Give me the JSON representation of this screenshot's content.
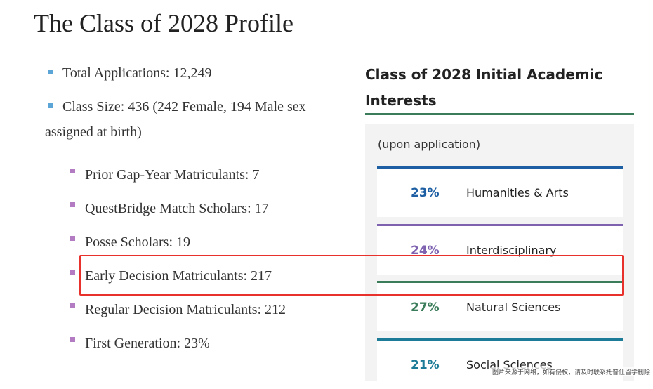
{
  "title": "The Class of 2028 Profile",
  "stats": {
    "total_applications": "Total Applications: 12,249",
    "class_size": "Class Size: 436 (242 Female, 194 Male sex assigned at birth)"
  },
  "sub_stats": [
    "Prior Gap-Year Matriculants: 7",
    "QuestBridge Match Scholars: 17",
    "Posse Scholars: 19",
    "Early Decision Matriculants: 217",
    "Regular Decision Matriculants: 212",
    "First Generation: 23%"
  ],
  "sidebar": {
    "title": "Class of 2028 Initial Academic Interests",
    "note": "(upon application)",
    "interests": [
      {
        "percent": "23%",
        "label": "Humanities & Arts",
        "color": "#1e5fa3"
      },
      {
        "percent": "24%",
        "label": "Interdisciplinary",
        "color": "#7e62b0"
      },
      {
        "percent": "27%",
        "label": "Natural Sciences",
        "color": "#3b7d5a"
      },
      {
        "percent": "21%",
        "label": "Social Sciences",
        "color": "#1c7c97"
      }
    ]
  },
  "colors": {
    "accent_green": "#3b7d5a",
    "bullet_blue": "#5ba6d6",
    "bullet_purple": "#b37cc2",
    "highlight_red": "#e8312a"
  },
  "watermark": "图片来源于网络，如有侵权，请及时联系托普仕留学删除"
}
